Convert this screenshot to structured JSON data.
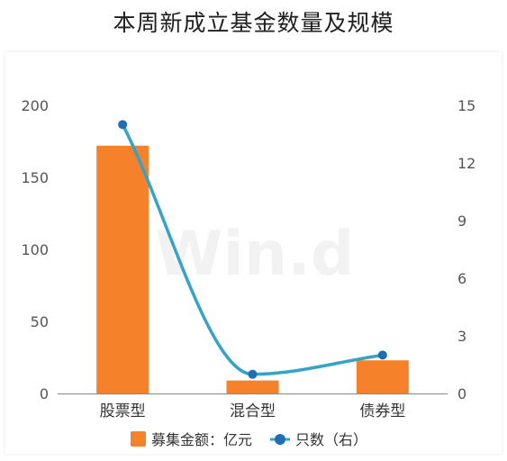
{
  "title": "本周新成立基金数量及规模",
  "watermark": "Win.d",
  "colors": {
    "bar": "#F5822A",
    "line": "#36A2C8",
    "marker": "#1F6EB5",
    "axis": "#888888"
  },
  "chart_data": {
    "type": "bar",
    "categories": [
      "股票型",
      "混合型",
      "债券型"
    ],
    "series": [
      {
        "name": "募集金额：亿元",
        "type": "bar",
        "axis": "left",
        "values": [
          172,
          9,
          23
        ]
      },
      {
        "name": "只数（右）",
        "type": "line",
        "axis": "right",
        "values": [
          14,
          1,
          2
        ]
      }
    ],
    "y_left": {
      "range": [
        0,
        200
      ],
      "ticks": [
        "0",
        "50",
        "100",
        "150",
        "200"
      ]
    },
    "y_right": {
      "range": [
        0,
        15
      ],
      "ticks": [
        "0",
        "3",
        "6",
        "9",
        "12",
        "15"
      ]
    },
    "legend_position": "bottom",
    "grid": false
  }
}
